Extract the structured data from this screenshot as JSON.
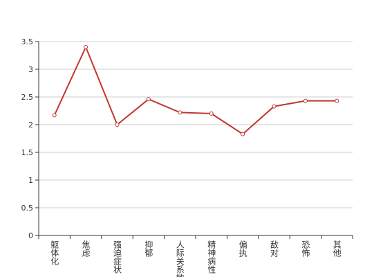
{
  "chart_data": {
    "type": "line",
    "categories": [
      "躯体化",
      "焦虑",
      "强迫症状",
      "抑郁",
      "人际关系敏感",
      "精神病性",
      "偏执",
      "敌对",
      "恐怖",
      "其他"
    ],
    "values": [
      2.17,
      3.4,
      2.0,
      2.46,
      2.22,
      2.2,
      1.83,
      2.33,
      2.43,
      2.43
    ],
    "color": "#c23531",
    "ylim": [
      0,
      3.5
    ],
    "yticks": [
      0,
      0.5,
      1,
      1.5,
      2,
      2.5,
      3,
      3.5
    ],
    "grid": true
  }
}
